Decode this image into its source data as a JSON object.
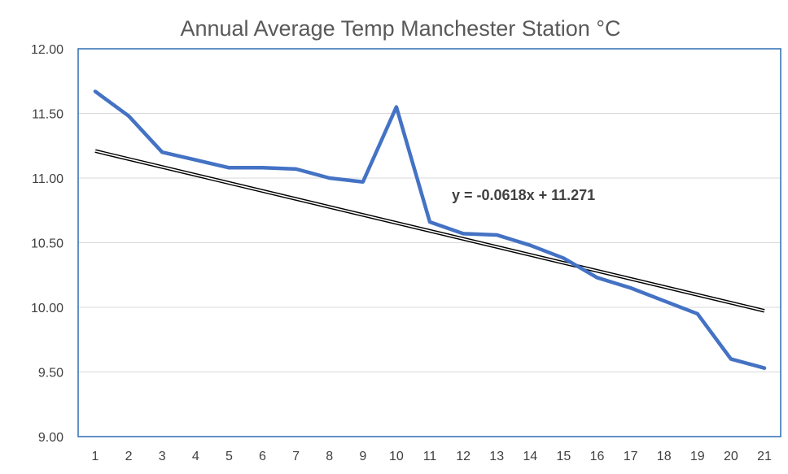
{
  "chart_data": {
    "type": "line",
    "title": "Annual Average Temp Manchester Station °C",
    "xlabel": "",
    "ylabel": "",
    "x": [
      1,
      2,
      3,
      4,
      5,
      6,
      7,
      8,
      9,
      10,
      11,
      12,
      13,
      14,
      15,
      16,
      17,
      18,
      19,
      20,
      21
    ],
    "x_tick_labels": [
      "1",
      "2",
      "3",
      "4",
      "5",
      "6",
      "7",
      "8",
      "9",
      "10",
      "11",
      "12",
      "13",
      "14",
      "15",
      "16",
      "17",
      "18",
      "19",
      "20",
      "21"
    ],
    "y_tick_labels": [
      "12.00",
      "11.50",
      "11.00",
      "10.50",
      "10.00",
      "9.50",
      "9.00"
    ],
    "ylim": [
      9.0,
      12.0
    ],
    "grid": true,
    "series": [
      {
        "name": "Annual Average Temp",
        "color": "#4472c4",
        "values": [
          11.67,
          11.48,
          11.2,
          11.14,
          11.08,
          11.08,
          11.07,
          11.0,
          10.97,
          11.55,
          10.66,
          10.57,
          10.56,
          10.48,
          10.38,
          10.23,
          10.15,
          10.05,
          9.95,
          9.6,
          9.53
        ]
      }
    ],
    "trendline": {
      "type": "linear",
      "slope": -0.0618,
      "intercept": 11.271,
      "color": "#000000",
      "equation_label": "y = -0.0618x + 11.271"
    }
  }
}
